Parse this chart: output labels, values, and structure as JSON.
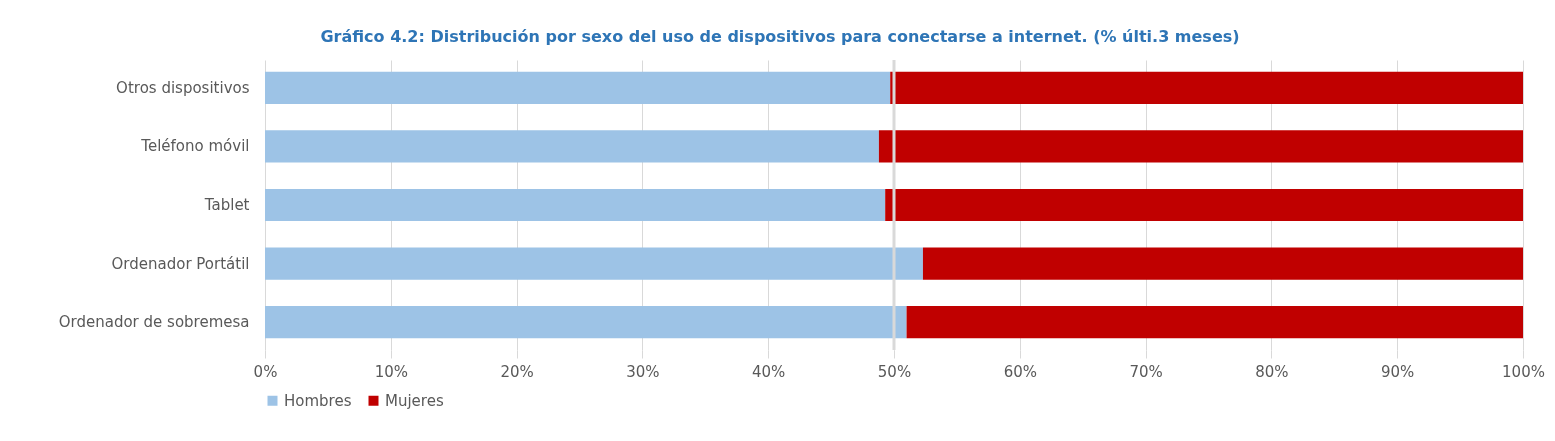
{
  "chart_data": {
    "type": "bar",
    "orientation": "horizontal",
    "stacked": true,
    "title": "Gráfico 4.2: Distribución por sexo del uso de dispositivos para conectarse a  internet. (% últi.3 meses)",
    "categories": [
      "Otros dispositivos",
      "Teléfono móvil",
      "Tablet",
      "Ordenador Portátil",
      "Ordenador de sobremesa"
    ],
    "series": [
      {
        "name": "Hombres",
        "color": "#9dc3e6",
        "values": [
          49.7,
          48.8,
          49.3,
          52.3,
          51.0
        ]
      },
      {
        "name": "Mujeres",
        "color": "#c00000",
        "values": [
          50.3,
          51.2,
          50.7,
          47.7,
          49.0
        ]
      }
    ],
    "xlim": [
      0,
      100
    ],
    "xticks": [
      {
        "value": 0,
        "label": "0%"
      },
      {
        "value": 10,
        "label": "10%"
      },
      {
        "value": 20,
        "label": "20%"
      },
      {
        "value": 30,
        "label": "30%"
      },
      {
        "value": 40,
        "label": "40%"
      },
      {
        "value": 50,
        "label": "50%"
      },
      {
        "value": 60,
        "label": "60%"
      },
      {
        "value": 70,
        "label": "70%"
      },
      {
        "value": 80,
        "label": "80%"
      },
      {
        "value": 90,
        "label": "90%"
      },
      {
        "value": 100,
        "label": "100%"
      }
    ],
    "ref_lines": [
      {
        "axis": "x",
        "value": 50,
        "color": "#d9d9d9"
      }
    ],
    "grid": "x",
    "legend": "bottom"
  }
}
